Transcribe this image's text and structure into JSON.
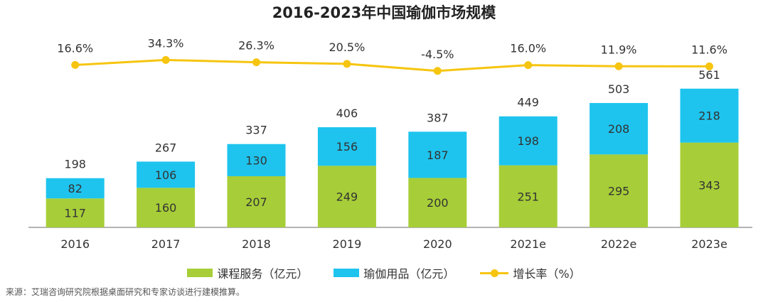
{
  "colors": {
    "course": "#A7CE38",
    "yoga": "#1EC4EE",
    "growth": "#F6C510",
    "axis": "#888888"
  },
  "chart_data": {
    "type": "bar",
    "stacked": true,
    "title": "2016-2023年中国瑜伽市场规模",
    "categories": [
      "2016",
      "2017",
      "2018",
      "2019",
      "2020",
      "2021e",
      "2022e",
      "2023e"
    ],
    "series": [
      {
        "name": "课程服务（亿元）",
        "values": [
          117,
          160,
          207,
          249,
          200,
          251,
          295,
          343
        ]
      },
      {
        "name": "瑜伽用品（亿元）",
        "values": [
          82,
          106,
          130,
          156,
          187,
          198,
          208,
          218
        ]
      }
    ],
    "totals": [
      198,
      267,
      337,
      406,
      387,
      449,
      503,
      561
    ],
    "line_series": {
      "name": "增长率（%）",
      "values": [
        16.6,
        34.3,
        26.3,
        20.5,
        -4.5,
        16.0,
        11.9,
        11.6
      ],
      "labels": [
        "16.6%",
        "34.3%",
        "26.3%",
        "20.5%",
        "-4.5%",
        "16.0%",
        "11.9%",
        "11.6%"
      ]
    },
    "ylim": [
      0,
      600
    ],
    "grid": false,
    "legend_position": "bottom"
  },
  "legend": {
    "course": "课程服务（亿元）",
    "yoga": "瑜伽用品（亿元）",
    "growth": "增长率（%）"
  },
  "source": "来源：艾瑞咨询研究院根据桌面研究和专家访谈进行建模推算。"
}
